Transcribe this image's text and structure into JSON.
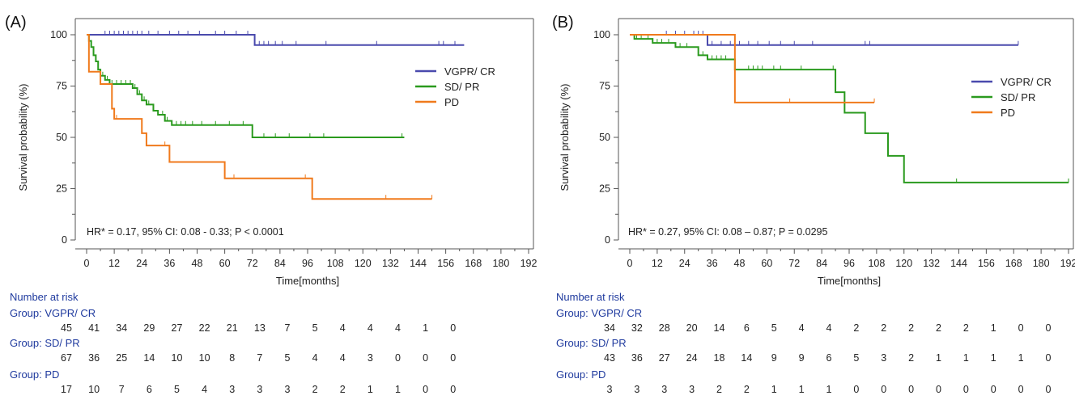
{
  "chart_data": [
    {
      "panel": "(A)",
      "type": "line",
      "step": true,
      "ylabel": "Survival probability (%)",
      "xlabel": "Time[months]",
      "ylim": [
        0,
        100
      ],
      "xlim": [
        0,
        192
      ],
      "yticks": [
        "0",
        "25",
        "50",
        "75",
        "100"
      ],
      "xticks": [
        "0",
        "12",
        "24",
        "36",
        "48",
        "60",
        "72",
        "84",
        "96",
        "108",
        "120",
        "132",
        "144",
        "156",
        "168",
        "180",
        "192"
      ],
      "annotation": "HR* = 0.17, 95% CI: 0.08 - 0.33; P < 0.0001",
      "legend_position": "top-right",
      "series": [
        {
          "name": "VGPR/ CR",
          "color": "#4a4aad",
          "points": [
            [
              0,
              100
            ],
            [
              73,
              100
            ],
            [
              73,
              95
            ],
            [
              164,
              95
            ]
          ],
          "censors": [
            8,
            10,
            12,
            14,
            16,
            18,
            20,
            22,
            24,
            27,
            31,
            36,
            40,
            44,
            49,
            56,
            60,
            65,
            70,
            75,
            77,
            79,
            82,
            85,
            91,
            104,
            126,
            153,
            155,
            160
          ]
        },
        {
          "name": "SD/ PR",
          "color": "#2a9a1e",
          "points": [
            [
              0,
              100
            ],
            [
              1,
              97
            ],
            [
              2,
              94
            ],
            [
              3,
              90
            ],
            [
              4,
              87
            ],
            [
              5,
              83
            ],
            [
              6,
              80
            ],
            [
              8,
              78
            ],
            [
              10,
              76
            ],
            [
              20,
              74
            ],
            [
              22,
              71
            ],
            [
              24,
              68
            ],
            [
              26,
              66
            ],
            [
              29,
              63
            ],
            [
              31,
              61
            ],
            [
              34,
              58
            ],
            [
              37,
              56
            ],
            [
              72,
              56
            ],
            [
              72,
              50
            ],
            [
              138,
              50
            ]
          ],
          "censors": [
            3,
            5,
            7,
            9,
            11,
            13,
            15,
            17,
            19,
            21,
            23,
            25,
            27,
            29,
            31,
            33,
            35,
            37,
            39,
            41,
            43,
            46,
            50,
            56,
            62,
            68,
            77,
            82,
            88,
            97,
            103,
            137
          ]
        },
        {
          "name": "PD",
          "color": "#f07a1c",
          "points": [
            [
              0,
              100
            ],
            [
              1,
              82
            ],
            [
              5,
              82
            ],
            [
              6,
              76
            ],
            [
              10,
              76
            ],
            [
              11,
              64
            ],
            [
              12,
              59
            ],
            [
              19,
              59
            ],
            [
              24,
              52
            ],
            [
              26,
              46
            ],
            [
              34,
              46
            ],
            [
              36,
              38
            ],
            [
              59,
              38
            ],
            [
              60,
              30
            ],
            [
              97,
              30
            ],
            [
              98,
              20
            ],
            [
              150,
              20
            ]
          ],
          "censors": [
            13,
            34,
            64,
            95,
            130,
            150
          ]
        }
      ],
      "risk_table": {
        "title": "Number at risk",
        "groups": [
          {
            "label": "Group: VGPR/ CR",
            "values": [
              "45",
              "41",
              "34",
              "29",
              "27",
              "22",
              "21",
              "13",
              "7",
              "5",
              "4",
              "4",
              "4",
              "1",
              "0"
            ]
          },
          {
            "label": "Group: SD/ PR",
            "values": [
              "67",
              "36",
              "25",
              "14",
              "10",
              "10",
              "8",
              "7",
              "5",
              "4",
              "4",
              "3",
              "0",
              "0",
              "0"
            ]
          },
          {
            "label": "Group: PD",
            "values": [
              "17",
              "10",
              "7",
              "6",
              "5",
              "4",
              "3",
              "3",
              "3",
              "2",
              "2",
              "1",
              "1",
              "0",
              "0"
            ]
          }
        ]
      }
    },
    {
      "panel": "(B)",
      "type": "line",
      "step": true,
      "ylabel": "Survival probability (%)",
      "xlabel": "Time[months]",
      "ylim": [
        0,
        100
      ],
      "xlim": [
        0,
        192
      ],
      "yticks": [
        "0",
        "25",
        "50",
        "75",
        "100"
      ],
      "xticks": [
        "0",
        "12",
        "24",
        "36",
        "48",
        "60",
        "72",
        "84",
        "96",
        "108",
        "120",
        "132",
        "144",
        "156",
        "168",
        "180",
        "192"
      ],
      "annotation": "HR* = 0.27, 95% CI: 0.08 – 0.87; P = 0.0295",
      "legend_position": "top-right",
      "series": [
        {
          "name": "VGPR/ CR",
          "color": "#4a4aad",
          "points": [
            [
              0,
              100
            ],
            [
              34,
              100
            ],
            [
              34,
              95
            ],
            [
              170,
              95
            ]
          ],
          "censors": [
            16,
            20,
            24,
            28,
            30,
            32,
            36,
            40,
            44,
            48,
            52,
            56,
            61,
            66,
            72,
            80,
            103,
            105,
            170
          ]
        },
        {
          "name": "SD/ PR",
          "color": "#2a9a1e",
          "points": [
            [
              0,
              100
            ],
            [
              2,
              98
            ],
            [
              8,
              98
            ],
            [
              10,
              96
            ],
            [
              18,
              96
            ],
            [
              20,
              94
            ],
            [
              28,
              94
            ],
            [
              30,
              90
            ],
            [
              34,
              88
            ],
            [
              46,
              88
            ],
            [
              46,
              83
            ],
            [
              89,
              83
            ],
            [
              90,
              72
            ],
            [
              93,
              72
            ],
            [
              94,
              62
            ],
            [
              102,
              62
            ],
            [
              103,
              52
            ],
            [
              112,
              52
            ],
            [
              113,
              41
            ],
            [
              119,
              41
            ],
            [
              120,
              28
            ],
            [
              192,
              28
            ]
          ],
          "censors": [
            3,
            5,
            8,
            12,
            14,
            17,
            22,
            25,
            32,
            36,
            38,
            40,
            42,
            52,
            54,
            56,
            58,
            63,
            66,
            75,
            89,
            143,
            192
          ]
        },
        {
          "name": "PD",
          "color": "#f07a1c",
          "points": [
            [
              0,
              100
            ],
            [
              46,
              100
            ],
            [
              46,
              67
            ],
            [
              107,
              67
            ]
          ],
          "censors": [
            70,
            107
          ]
        }
      ],
      "risk_table": {
        "title": "Number at risk",
        "groups": [
          {
            "label": "Group: VGPR/ CR",
            "values": [
              "34",
              "32",
              "28",
              "20",
              "14",
              "6",
              "5",
              "4",
              "4",
              "2",
              "2",
              "2",
              "2",
              "2",
              "1",
              "0",
              "0"
            ]
          },
          {
            "label": "Group: SD/ PR",
            "values": [
              "43",
              "36",
              "27",
              "24",
              "18",
              "14",
              "9",
              "9",
              "6",
              "5",
              "3",
              "2",
              "1",
              "1",
              "1",
              "1",
              "0"
            ]
          },
          {
            "label": "Group: PD",
            "values": [
              "3",
              "3",
              "3",
              "3",
              "2",
              "2",
              "1",
              "1",
              "1",
              "0",
              "0",
              "0",
              "0",
              "0",
              "0",
              "0",
              "0"
            ]
          }
        ]
      }
    }
  ]
}
